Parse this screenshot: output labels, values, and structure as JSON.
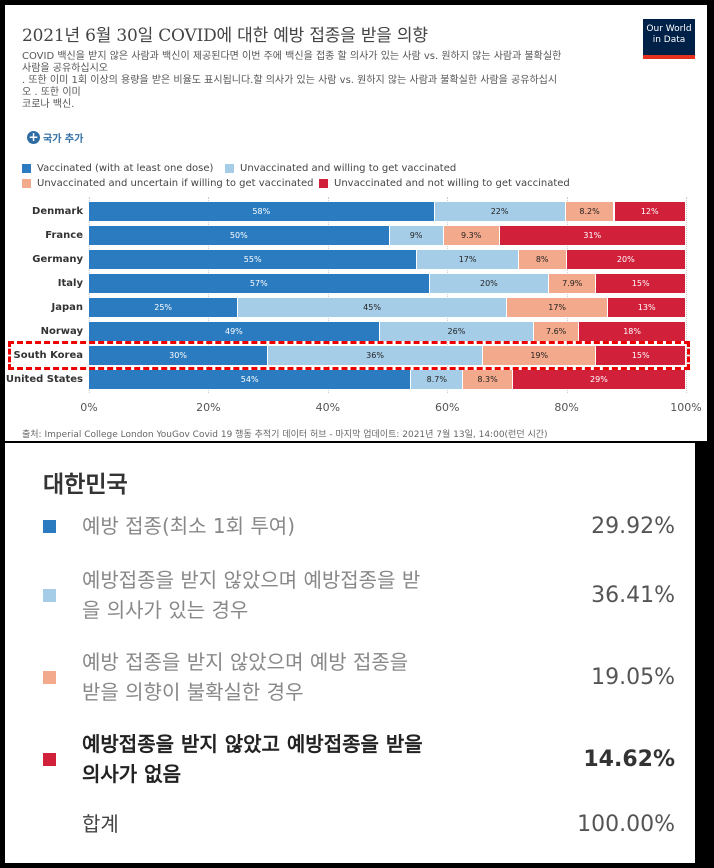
{
  "header": {
    "title": "2021년 6월 30일 COVID에 대한 예방 접종을 받을 의향",
    "subtitle_lines": [
      "COVID 백신을 받지 않은 사람과 백신이 제공된다면 이번 주에 백신을 접종 할 의사가 있는 사람 vs. 원하지 않는 사람과 불확실한",
      " 사람을 공유하십시오",
      ". 또한 이미 1회 이상의 용량을 받은 비율도 표시됩니다.할 의사가 있는 사람 vs. 원하지 않는 사람과 불확실한 사람을 공유하십시",
      "오 . 또한 이미",
      "코로나 백신."
    ],
    "logo_line1": "Our World",
    "logo_line2": "in Data",
    "add_country": "국가 추가"
  },
  "colors": {
    "vaccinated": "#2a7bbf",
    "willing": "#a6cde8",
    "uncertain": "#f3a98b",
    "not_willing": "#d0203a"
  },
  "chart_data": {
    "type": "bar",
    "orientation": "horizontal",
    "stacked": true,
    "categories": [
      "Denmark",
      "France",
      "Germany",
      "Italy",
      "Japan",
      "Norway",
      "South Korea",
      "United States"
    ],
    "series": [
      {
        "name": "Vaccinated (with at least one dose)",
        "key": "vaccinated",
        "values": [
          58,
          50,
          55,
          57,
          25,
          49,
          30,
          54
        ],
        "labels": [
          "58%",
          "50%",
          "55%",
          "57%",
          "25%",
          "49%",
          "30%",
          "54%"
        ]
      },
      {
        "name": "Unvaccinated and willing to get vaccinated",
        "key": "willing",
        "values": [
          22,
          9,
          17,
          20,
          45,
          26,
          36,
          8.7
        ],
        "labels": [
          "22%",
          "9%",
          "17%",
          "20%",
          "45%",
          "26%",
          "36%",
          "8.7%"
        ]
      },
      {
        "name": "Unvaccinated and uncertain if willing to get vaccinated",
        "key": "uncertain",
        "values": [
          8.2,
          9.3,
          8,
          7.9,
          17,
          7.6,
          19,
          8.3
        ],
        "labels": [
          "8.2%",
          "9.3%",
          "8%",
          "7.9%",
          "17%",
          "7.6%",
          "19%",
          "8.3%"
        ]
      },
      {
        "name": "Unvaccinated and not willing to get vaccinated",
        "key": "not_willing",
        "values": [
          12,
          31,
          20,
          15,
          13,
          18,
          15,
          29
        ],
        "labels": [
          "12%",
          "31%",
          "20%",
          "15%",
          "13%",
          "18%",
          "15%",
          "29%"
        ]
      }
    ],
    "xlim": [
      0,
      100
    ],
    "xticks": [
      "0%",
      "20%",
      "40%",
      "60%",
      "80%",
      "100%"
    ],
    "highlighted_category": "South Korea"
  },
  "source": "출처: Imperial College London YouGov Covid 19 행동 추적기 데이터 허브 - 마지막 업데이트: 2021년 7월 13일, 14:00(런던 시간)",
  "breakdown": {
    "title": "대한민국",
    "rows": [
      {
        "line1": "예방 접종(최소 1회 투여)",
        "line2": "",
        "value": "29.92%",
        "color": "#2a7bbf",
        "strong": false
      },
      {
        "line1": "예방접종을 받지 않았으며 예방접종을 받",
        "line2": "을 의사가 있는 경우",
        "value": "36.41%",
        "color": "#a6cde8",
        "strong": false
      },
      {
        "line1": "예방 접종을 받지 않았으며 예방 접종을",
        "line2": "받을 의향이 불확실한 경우",
        "value": "19.05%",
        "color": "#f3a98b",
        "strong": false
      },
      {
        "line1": "예방접종을 받지 않았고 예방접종을 받을",
        "line2": "의사가 없음",
        "value": "14.62%",
        "color": "#d0203a",
        "strong": true
      }
    ],
    "total_label": "합계",
    "total_value": "100.00%"
  }
}
